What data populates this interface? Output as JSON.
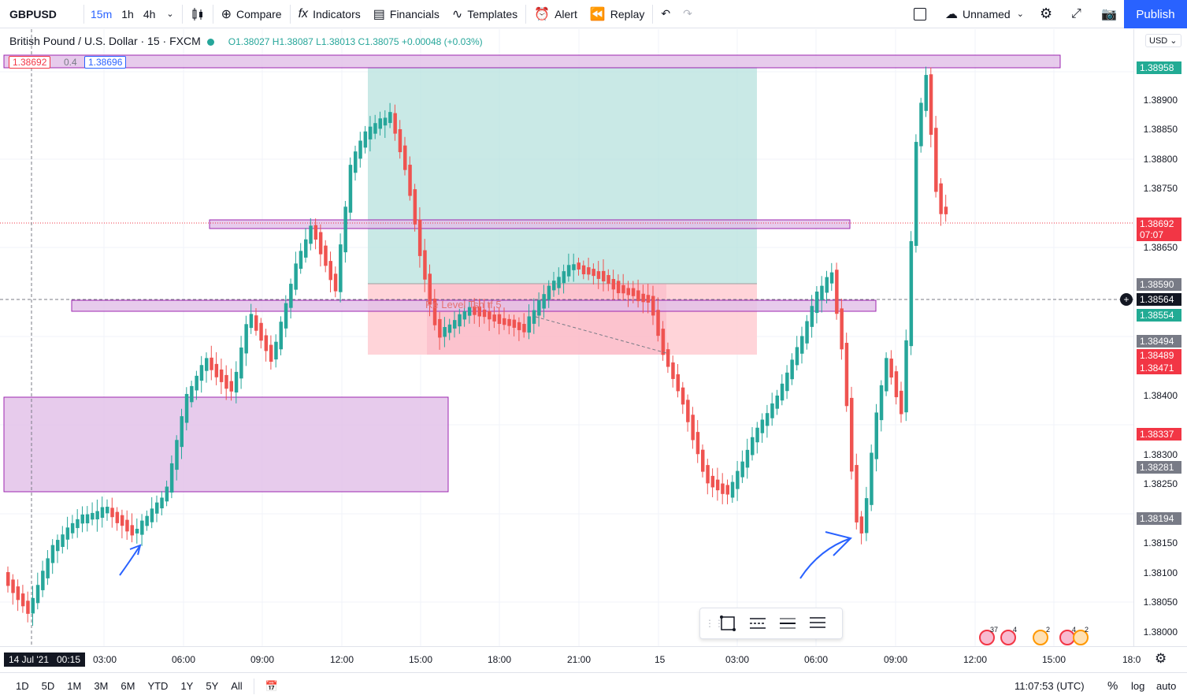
{
  "toolbar": {
    "symbol": "GBPUSD",
    "intervals": [
      "15m",
      "1h",
      "4h"
    ],
    "active_interval": "15m",
    "compare": "Compare",
    "indicators": "Indicators",
    "financials": "Financials",
    "templates": "Templates",
    "alert": "Alert",
    "replay": "Replay",
    "layout_name": "Unnamed",
    "publish": "Publish"
  },
  "legend": {
    "title": "British Pound / U.S. Dollar · 15 · FXCM",
    "ohlc": "O1.38027 H1.38087 L1.38013 C1.38075 +0.00048 (+0.03%)",
    "sell_price": "1.38692",
    "spread": "0.4",
    "buy_price": "1.38696"
  },
  "price_scale": {
    "currency": "USD",
    "ticks": [
      "1.38900",
      "1.38850",
      "1.38800",
      "1.38750",
      "1.38650",
      "1.38400",
      "1.38300",
      "1.38250",
      "1.38150",
      "1.38100",
      "1.38050",
      "1.38000"
    ],
    "tags": [
      {
        "text": "1.38958",
        "color": "#22ab94"
      },
      {
        "text": "1.38692",
        "color": "#f23645"
      },
      {
        "text": "07:07",
        "color": "#f23645"
      },
      {
        "text": "1.38590",
        "color": "#787b86"
      },
      {
        "text": "1.38564",
        "color": "#131722"
      },
      {
        "text": "1.38554",
        "color": "#22ab94"
      },
      {
        "text": "1.38494",
        "color": "#787b86"
      },
      {
        "text": "1.38489",
        "color": "#f23645"
      },
      {
        "text": "1.38471",
        "color": "#f23645"
      },
      {
        "text": "1.38337",
        "color": "#f23645"
      },
      {
        "text": "1.38281",
        "color": "#787b86"
      },
      {
        "text": "1.38194",
        "color": "#787b86"
      }
    ]
  },
  "time_scale": {
    "crosshair_label": "14 Jul '21   00:15",
    "ticks": [
      "03:00",
      "06:00",
      "09:00",
      "12:00",
      "15:00",
      "18:00",
      "21:00",
      "15",
      "03:00",
      "06:00",
      "09:00",
      "12:00",
      "15:00",
      "18:0"
    ]
  },
  "bottom_bar": {
    "ranges": [
      "1D",
      "5D",
      "1M",
      "3M",
      "6M",
      "YTD",
      "1Y",
      "5Y",
      "All"
    ],
    "clock": "11:07:53 (UTC)",
    "percent": "%",
    "log": "log",
    "auto": "auto"
  },
  "chart_overlay": {
    "position_label": "Re  Level  Tsh  tf  5"
  },
  "events": {
    "badge1": "37",
    "badge2": "4",
    "badge3": "2",
    "badge4": "4",
    "badge5": "2"
  },
  "colors": {
    "up": "#26a69a",
    "down": "#ef5350",
    "zone": "#e1bee7",
    "accent": "#2962ff"
  }
}
